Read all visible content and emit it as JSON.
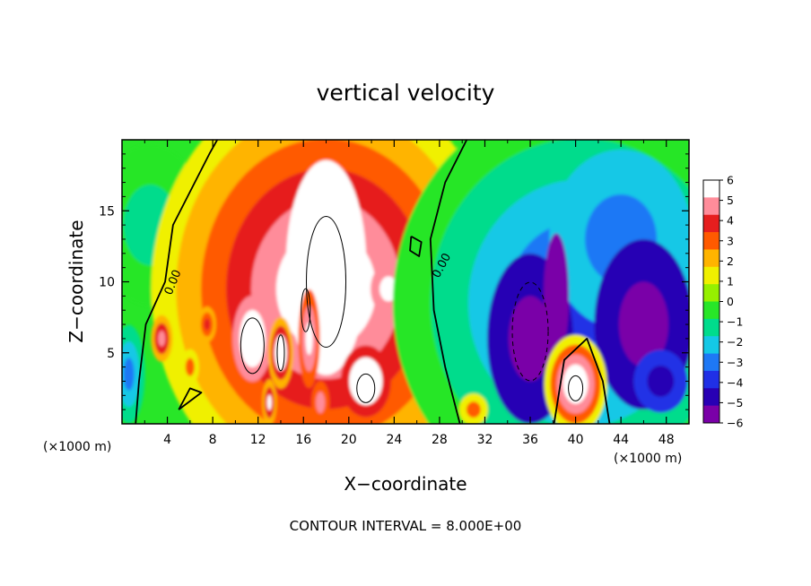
{
  "chart_data": {
    "type": "heatmap",
    "title": "vertical velocity",
    "xlabel": "X−coordinate",
    "ylabel": "Z−coordinate",
    "x_unit_left": "(×1000 m)",
    "x_unit_right": "(×1000 m)",
    "xlim": [
      0,
      50
    ],
    "ylim": [
      0,
      20
    ],
    "x_ticks": [
      "4",
      "8",
      "12",
      "16",
      "20",
      "24",
      "28",
      "32",
      "36",
      "40",
      "44",
      "48"
    ],
    "y_ticks": [
      "5",
      "10",
      "15"
    ],
    "colorbar": {
      "levels": [
        -6,
        -5,
        -4,
        -3,
        -2,
        -1,
        0,
        1,
        2,
        3,
        4,
        5,
        6
      ],
      "labels": [
        "6",
        "5",
        "4",
        "3",
        "2",
        "1",
        "0",
        "−1",
        "−2",
        "−3",
        "−4",
        "−5",
        "−6"
      ],
      "colors": [
        "#7a00a8",
        "#2800b4",
        "#2030e6",
        "#1e78f5",
        "#14c8e6",
        "#00dc8c",
        "#28e628",
        "#96f000",
        "#f0f000",
        "#ffb400",
        "#ff5a00",
        "#e61e1e",
        "#ff8c9a",
        "#ffffff"
      ]
    },
    "contour_labels": [
      "0.00",
      "0.00"
    ],
    "footer": "CONTOUR INTERVAL = 8.000E+00",
    "features": [
      {
        "kind": "updraft_core",
        "x": 18,
        "z": 10.5,
        "w_peak": 6
      },
      {
        "kind": "updraft_core",
        "x": 11.5,
        "z": 6,
        "w_peak": 6
      },
      {
        "kind": "updraft_core",
        "x": 21.5,
        "z": 3,
        "w_peak": 6
      },
      {
        "kind": "updraft_core",
        "x": 40,
        "z": 2.5,
        "w_peak": 6
      },
      {
        "kind": "downdraft_core",
        "x": 36,
        "z": 6.5,
        "w_peak": -6
      },
      {
        "kind": "downdraft_core",
        "x": 46,
        "z": 8,
        "w_peak": -6
      }
    ]
  }
}
